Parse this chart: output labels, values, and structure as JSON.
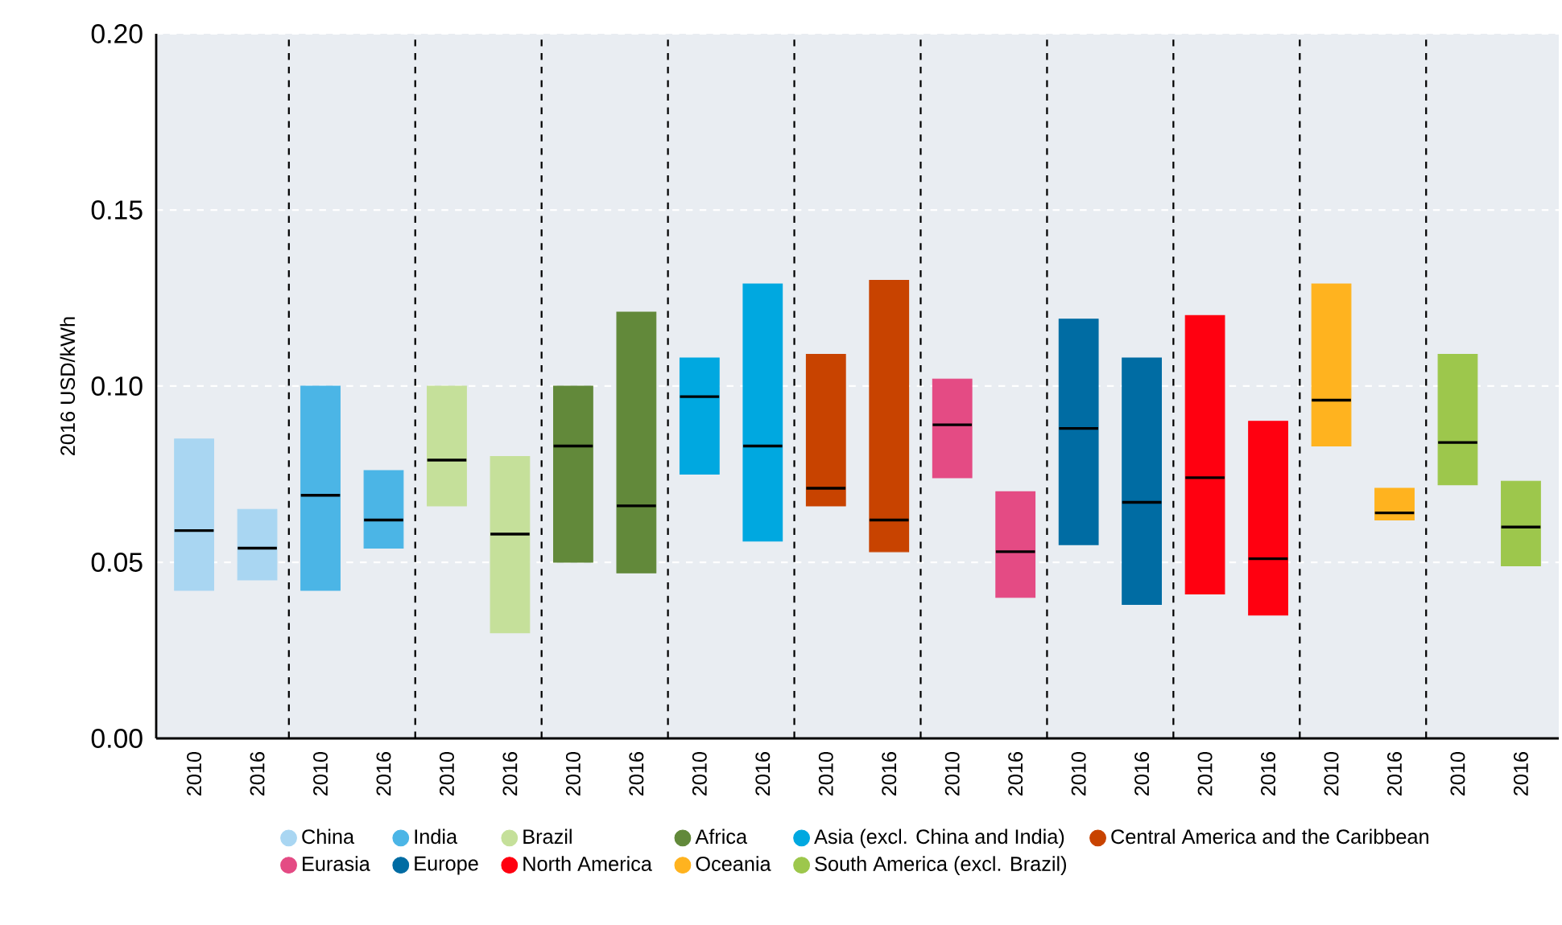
{
  "chart_data": {
    "type": "box",
    "ylabel": "2016 USD/kWh",
    "categories": [
      "2010",
      "2016",
      "2010",
      "2016",
      "2010",
      "2016",
      "2010",
      "2016",
      "2010",
      "2016",
      "2010",
      "2016",
      "2010",
      "2016",
      "2010",
      "2016",
      "2010",
      "2016",
      "2010",
      "2016",
      "2010",
      "2016"
    ],
    "ylim": [
      0,
      0.2
    ],
    "yticks": [
      {
        "value": 0,
        "label": "0.00"
      },
      {
        "value": 0.05,
        "label": "0.05"
      },
      {
        "value": 0.1,
        "label": "0.10"
      },
      {
        "value": 0.15,
        "label": "0.15"
      },
      {
        "value": 0.2,
        "label": "0.20"
      }
    ],
    "grid": "y",
    "legend": "bottom",
    "series": [
      {
        "name": "China",
        "color": "#a9d6f2",
        "boxes": [
          {
            "low": 0.042,
            "q1": 0.042,
            "median": 0.059,
            "q3": 0.085,
            "high": 0.085
          },
          {
            "low": 0.045,
            "q1": 0.045,
            "median": 0.054,
            "q3": 0.065,
            "high": 0.065
          },
          null,
          null,
          null,
          null,
          null,
          null,
          null,
          null,
          null,
          null,
          null,
          null,
          null,
          null,
          null,
          null,
          null,
          null,
          null,
          null
        ]
      },
      {
        "name": "India",
        "color": "#4bb5e6",
        "boxes": [
          null,
          null,
          {
            "low": 0.042,
            "q1": 0.042,
            "median": 0.069,
            "q3": 0.1,
            "high": 0.1
          },
          {
            "low": 0.054,
            "q1": 0.054,
            "median": 0.062,
            "q3": 0.076,
            "high": 0.076
          },
          null,
          null,
          null,
          null,
          null,
          null,
          null,
          null,
          null,
          null,
          null,
          null,
          null,
          null,
          null,
          null,
          null,
          null
        ]
      },
      {
        "name": "Brazil",
        "color": "#c5e09a",
        "boxes": [
          null,
          null,
          null,
          null,
          {
            "low": 0.066,
            "q1": 0.066,
            "median": 0.079,
            "q3": 0.1,
            "high": 0.1
          },
          {
            "low": 0.03,
            "q1": 0.03,
            "median": 0.058,
            "q3": 0.08,
            "high": 0.08
          },
          null,
          null,
          null,
          null,
          null,
          null,
          null,
          null,
          null,
          null,
          null,
          null,
          null,
          null,
          null,
          null
        ]
      },
      {
        "name": "Africa",
        "color": "#62893a",
        "boxes": [
          null,
          null,
          null,
          null,
          null,
          null,
          {
            "low": 0.05,
            "q1": 0.05,
            "median": 0.083,
            "q3": 0.1,
            "high": 0.1
          },
          {
            "low": 0.047,
            "q1": 0.047,
            "median": 0.066,
            "q3": 0.121,
            "high": 0.121
          },
          null,
          null,
          null,
          null,
          null,
          null,
          null,
          null,
          null,
          null,
          null,
          null,
          null,
          null
        ]
      },
      {
        "name": "Asia (excl. China and India)",
        "color": "#00a8e0",
        "boxes": [
          null,
          null,
          null,
          null,
          null,
          null,
          null,
          null,
          {
            "low": 0.075,
            "q1": 0.075,
            "median": 0.097,
            "q3": 0.108,
            "high": 0.108
          },
          {
            "low": 0.056,
            "q1": 0.056,
            "median": 0.083,
            "q3": 0.129,
            "high": 0.129
          },
          null,
          null,
          null,
          null,
          null,
          null,
          null,
          null,
          null,
          null,
          null,
          null
        ]
      },
      {
        "name": "Central America and the Caribbean",
        "color": "#c84300",
        "boxes": [
          null,
          null,
          null,
          null,
          null,
          null,
          null,
          null,
          null,
          null,
          {
            "low": 0.066,
            "q1": 0.066,
            "median": 0.071,
            "q3": 0.109,
            "high": 0.109
          },
          {
            "low": 0.053,
            "q1": 0.053,
            "median": 0.062,
            "q3": 0.13,
            "high": 0.13
          },
          null,
          null,
          null,
          null,
          null,
          null,
          null,
          null,
          null,
          null
        ]
      },
      {
        "name": "Eurasia",
        "color": "#e44b84",
        "boxes": [
          null,
          null,
          null,
          null,
          null,
          null,
          null,
          null,
          null,
          null,
          null,
          null,
          {
            "low": 0.074,
            "q1": 0.074,
            "median": 0.089,
            "q3": 0.102,
            "high": 0.102
          },
          {
            "low": 0.04,
            "q1": 0.04,
            "median": 0.053,
            "q3": 0.07,
            "high": 0.07
          },
          null,
          null,
          null,
          null,
          null,
          null,
          null,
          null
        ]
      },
      {
        "name": "Europe",
        "color": "#006ca3",
        "boxes": [
          null,
          null,
          null,
          null,
          null,
          null,
          null,
          null,
          null,
          null,
          null,
          null,
          null,
          null,
          {
            "low": 0.055,
            "q1": 0.055,
            "median": 0.088,
            "q3": 0.119,
            "high": 0.119
          },
          {
            "low": 0.038,
            "q1": 0.038,
            "median": 0.067,
            "q3": 0.108,
            "high": 0.108
          },
          null,
          null,
          null,
          null,
          null,
          null
        ]
      },
      {
        "name": "North America",
        "color": "#ff0010",
        "boxes": [
          null,
          null,
          null,
          null,
          null,
          null,
          null,
          null,
          null,
          null,
          null,
          null,
          null,
          null,
          null,
          null,
          {
            "low": 0.041,
            "q1": 0.041,
            "median": 0.074,
            "q3": 0.12,
            "high": 0.12
          },
          {
            "low": 0.035,
            "q1": 0.035,
            "median": 0.051,
            "q3": 0.09,
            "high": 0.09
          },
          null,
          null,
          null,
          null
        ]
      },
      {
        "name": "Oceania",
        "color": "#ffb31f",
        "boxes": [
          null,
          null,
          null,
          null,
          null,
          null,
          null,
          null,
          null,
          null,
          null,
          null,
          null,
          null,
          null,
          null,
          null,
          null,
          {
            "low": 0.083,
            "q1": 0.083,
            "median": 0.096,
            "q3": 0.129,
            "high": 0.129
          },
          {
            "low": 0.062,
            "q1": 0.062,
            "median": 0.064,
            "q3": 0.071,
            "high": 0.071
          },
          null,
          null
        ]
      },
      {
        "name": "South America (excl. Brazil)",
        "color": "#9dc74c",
        "boxes": [
          null,
          null,
          null,
          null,
          null,
          null,
          null,
          null,
          null,
          null,
          null,
          null,
          null,
          null,
          null,
          null,
          null,
          null,
          null,
          null,
          {
            "low": 0.072,
            "q1": 0.072,
            "median": 0.084,
            "q3": 0.109,
            "high": 0.109
          },
          {
            "low": 0.049,
            "q1": 0.049,
            "median": 0.06,
            "q3": 0.073,
            "high": 0.073
          }
        ]
      }
    ]
  }
}
